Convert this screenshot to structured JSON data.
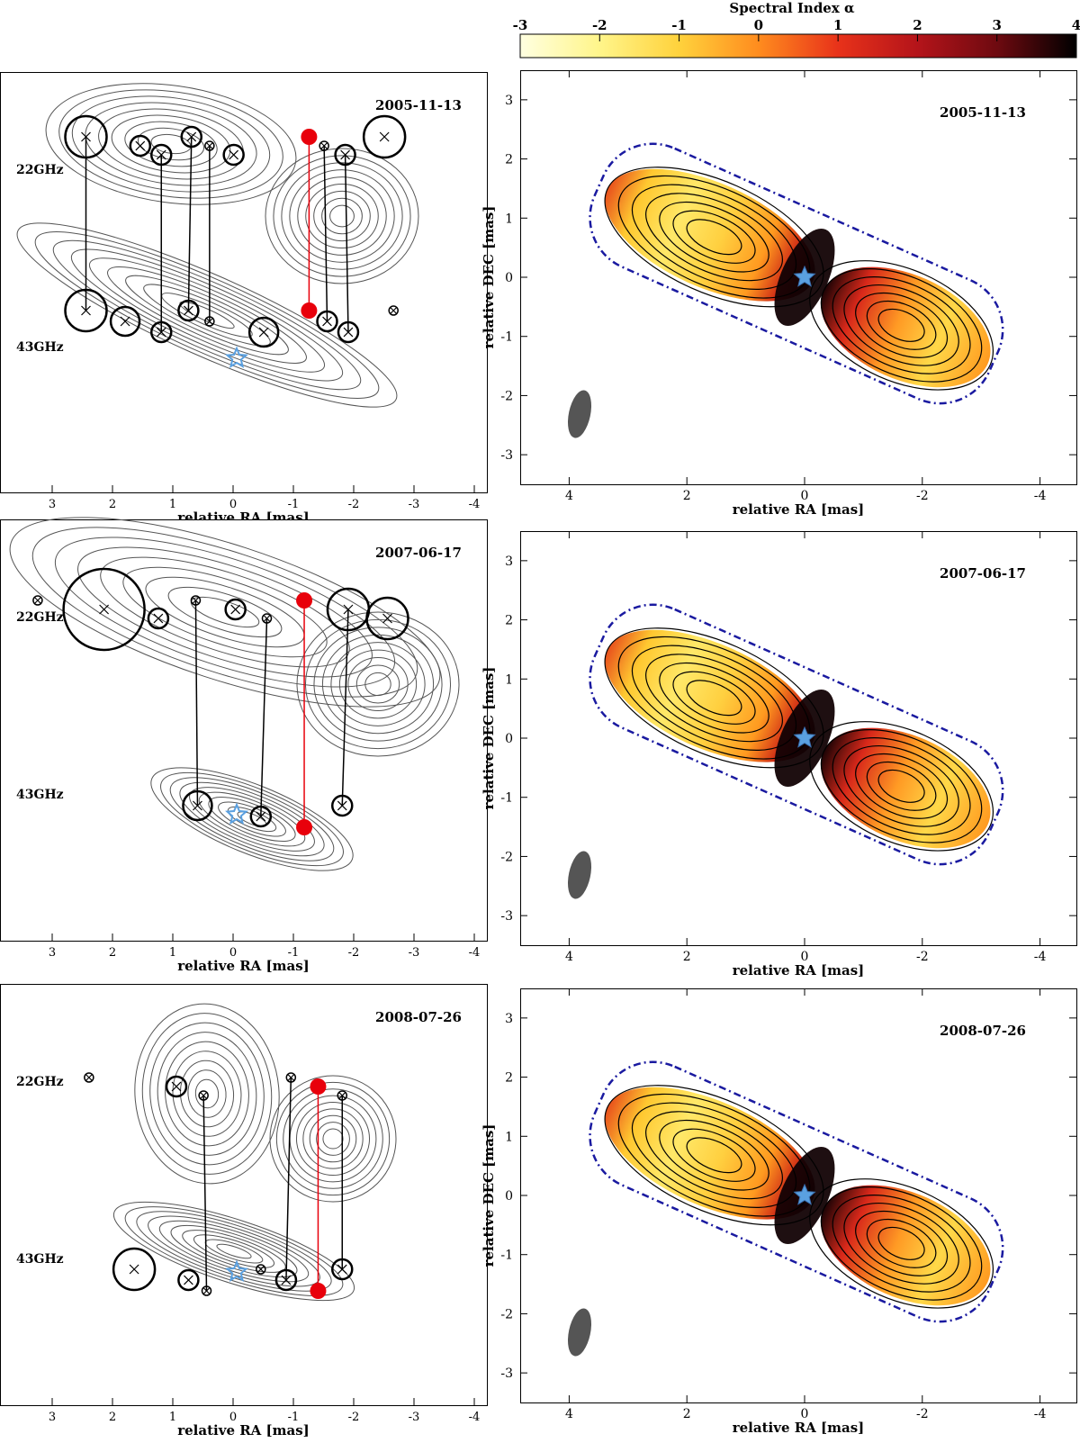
{
  "colorbar": {
    "title": "Spectral Index α",
    "ticks": [
      "-3",
      "-2",
      "-1",
      "0",
      "1",
      "2",
      "3",
      "4"
    ],
    "range": [
      -3,
      4
    ],
    "colors": [
      "#ffffe0",
      "#fff58a",
      "#ffd23c",
      "#ff8c1e",
      "#e8321a",
      "#b4141a",
      "#6e0a10",
      "#000000"
    ]
  },
  "left_panels": {
    "xlabel": "relative RA [mas]",
    "xticks": [
      "3",
      "2",
      "1",
      "0",
      "-1",
      "-2",
      "-3",
      "-4"
    ],
    "band_top": "22GHz",
    "band_bottom": "43GHz"
  },
  "right_panels": {
    "xlabel": "relative RA [mas]",
    "ylabel": "relative DEC [mas]",
    "xticks": [
      "4",
      "2",
      "0",
      "-2",
      "-4"
    ],
    "yticks": [
      "3",
      "2",
      "1",
      "0",
      "-1",
      "-2",
      "-3"
    ]
  },
  "epochs": [
    "2005-11-13",
    "2007-06-17",
    "2008-07-26"
  ],
  "colors": {
    "contour": "#555555",
    "matched_line": "#000000",
    "red_component": "#e8000b",
    "core_star": "#5aa0e0",
    "dashdot": "#1a1aa0"
  },
  "chart_data": [
    {
      "type": "scatter",
      "title": "2005-11-13",
      "xlabel": "relative RA [mas]",
      "xlim": [
        3.7,
        -4.1
      ],
      "components_22GHz": [
        {
          "x": 2.5,
          "size": "large"
        },
        {
          "x": 1.6,
          "size": "small"
        },
        {
          "x": 1.25,
          "size": "small"
        },
        {
          "x": 0.75,
          "size": "small"
        },
        {
          "x": 0.45,
          "size": "tiny"
        },
        {
          "x": 0.05,
          "size": "small"
        },
        {
          "x": -1.2,
          "size": "red"
        },
        {
          "x": -1.45,
          "size": "tiny"
        },
        {
          "x": -1.8,
          "size": "small"
        },
        {
          "x": -2.45,
          "size": "large"
        }
      ],
      "components_43GHz": [
        {
          "x": 2.5,
          "size": "large"
        },
        {
          "x": 1.85,
          "size": "medium"
        },
        {
          "x": 1.25,
          "size": "small"
        },
        {
          "x": 0.8,
          "size": "small"
        },
        {
          "x": 0.45,
          "size": "tiny"
        },
        {
          "x": -0.45,
          "size": "medium"
        },
        {
          "x": -1.2,
          "size": "red"
        },
        {
          "x": -1.5,
          "size": "small"
        },
        {
          "x": -1.85,
          "size": "small"
        },
        {
          "x": -2.6,
          "size": "tiny"
        }
      ]
    },
    {
      "type": "scatter",
      "title": "2007-06-17",
      "xlabel": "relative RA [mas]",
      "xlim": [
        3.7,
        -4.1
      ],
      "components_22GHz": [
        {
          "x": 3.3,
          "size": "tiny"
        },
        {
          "x": 2.2,
          "size": "huge"
        },
        {
          "x": 1.3,
          "size": "small"
        },
        {
          "x": 0.68,
          "size": "tiny"
        },
        {
          "x": 0.02,
          "size": "small"
        },
        {
          "x": -0.5,
          "size": "tiny"
        },
        {
          "x": -1.12,
          "size": "red"
        },
        {
          "x": -1.85,
          "size": "large"
        },
        {
          "x": -2.5,
          "size": "large"
        }
      ],
      "components_43GHz": [
        {
          "x": 0.65,
          "size": "medium"
        },
        {
          "x": -0.4,
          "size": "small"
        },
        {
          "x": -1.12,
          "size": "red"
        },
        {
          "x": -1.75,
          "size": "small"
        }
      ]
    },
    {
      "type": "scatter",
      "title": "2008-07-26",
      "xlabel": "relative RA [mas]",
      "xlim": [
        3.7,
        -4.1
      ],
      "components_22GHz": [
        {
          "x": 2.45,
          "size": "tiny"
        },
        {
          "x": 1.0,
          "size": "small"
        },
        {
          "x": 0.55,
          "size": "tiny"
        },
        {
          "x": -0.9,
          "size": "tiny"
        },
        {
          "x": -1.35,
          "size": "red"
        },
        {
          "x": -1.75,
          "size": "tiny"
        }
      ],
      "components_43GHz": [
        {
          "x": 1.7,
          "size": "large"
        },
        {
          "x": 0.8,
          "size": "small"
        },
        {
          "x": 0.5,
          "size": "tiny"
        },
        {
          "x": -0.4,
          "size": "tiny"
        },
        {
          "x": -0.82,
          "size": "small"
        },
        {
          "x": -1.35,
          "size": "red"
        },
        {
          "x": -1.75,
          "size": "small"
        }
      ]
    },
    {
      "type": "heatmap",
      "title": "2005-11-13",
      "xlabel": "relative RA [mas]",
      "ylabel": "relative DEC [mas]",
      "xlim": [
        4.5,
        -4.5
      ],
      "ylim": [
        -3.5,
        3.5
      ],
      "colorbar": "Spectral Index α",
      "colorbar_range": [
        -3,
        4
      ]
    },
    {
      "type": "heatmap",
      "title": "2007-06-17",
      "xlabel": "relative RA [mas]",
      "ylabel": "relative DEC [mas]",
      "xlim": [
        4.5,
        -4.5
      ],
      "ylim": [
        -3.5,
        3.5
      ]
    },
    {
      "type": "heatmap",
      "title": "2008-07-26",
      "xlabel": "relative RA [mas]",
      "ylabel": "relative DEC [mas]",
      "xlim": [
        4.5,
        -4.5
      ],
      "ylim": [
        -3.5,
        3.5
      ]
    }
  ]
}
